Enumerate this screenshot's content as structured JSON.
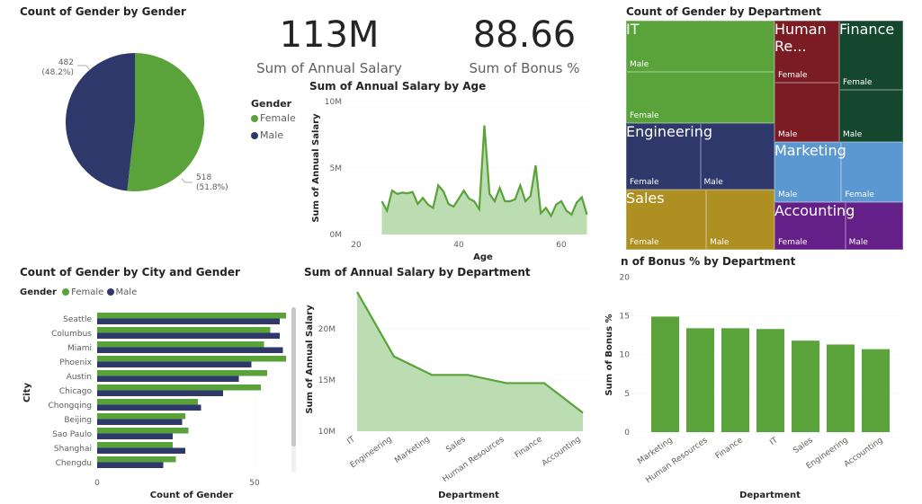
{
  "colors": {
    "female": "#5aa23a",
    "male": "#2e386b",
    "area": "#bcdcb1"
  },
  "kpis": [
    {
      "value": "113M",
      "label": "Sum of Annual Salary"
    },
    {
      "value": "88.66",
      "label": "Sum of Bonus %"
    }
  ],
  "legend": {
    "title": "Gender",
    "female": "Female",
    "male": "Male"
  },
  "pie": {
    "chart_title": "Count of Gender by Gender",
    "slices": [
      {
        "name": "Female",
        "value": 518,
        "label": "518",
        "pct": "(51.8%)"
      },
      {
        "name": "Male",
        "value": 482,
        "label": "482",
        "pct": "(48.2%)"
      }
    ]
  },
  "treemap": {
    "chart_title": "Count of Gender by Department",
    "departments": [
      {
        "name": "IT",
        "color": "#5aa23a",
        "groups": [
          "Male",
          "Female"
        ]
      },
      {
        "name": "Engineering",
        "color": "#2e386b",
        "groups": [
          "Female",
          "Male"
        ]
      },
      {
        "name": "Sales",
        "color": "#ae8f21",
        "groups": [
          "Female",
          "Male"
        ]
      },
      {
        "name": "Human Re...",
        "color": "#7b1c25",
        "groups": [
          "Female",
          "Male"
        ]
      },
      {
        "name": "Finance",
        "color": "#14472d",
        "groups": [
          "Female",
          "Male"
        ]
      },
      {
        "name": "Marketing",
        "color": "#5b97d1",
        "groups": [
          "Male",
          "Female"
        ]
      },
      {
        "name": "Accounting",
        "color": "#651f88",
        "groups": [
          "Female",
          "Male"
        ]
      }
    ]
  },
  "chart_data": [
    {
      "type": "area",
      "title": "Sum of Annual Salary by Age",
      "xlabel": "Age",
      "ylabel": "Sum of Annual Salary",
      "xlim": [
        20,
        65
      ],
      "ylim": [
        0,
        10000000
      ],
      "xticks": [
        "20",
        "40",
        "60"
      ],
      "yticks": [
        "0M",
        "5M",
        "10M"
      ],
      "x": [
        25,
        26,
        27,
        28,
        29,
        30,
        31,
        32,
        33,
        34,
        35,
        36,
        37,
        38,
        39,
        40,
        41,
        42,
        43,
        44,
        45,
        46,
        47,
        48,
        49,
        50,
        51,
        52,
        53,
        54,
        55,
        56,
        57,
        58,
        59,
        60,
        61,
        62,
        63,
        64,
        65
      ],
      "values": [
        2.5,
        1.8,
        3.3,
        3.05,
        3.15,
        3.1,
        3.2,
        2.3,
        2.75,
        2.25,
        2.0,
        3.7,
        3.25,
        2.3,
        2.1,
        2.7,
        3.3,
        2.7,
        2.5,
        1.9,
        8.2,
        3.05,
        2.5,
        3.5,
        2.5,
        2.5,
        2.65,
        3.7,
        2.5,
        2.9,
        5.2,
        1.6,
        2.0,
        1.4,
        2.25,
        2.5,
        1.8,
        1.5,
        2.4,
        2.8,
        1.5
      ],
      "unit": "M"
    },
    {
      "type": "bar",
      "orientation": "horizontal",
      "title": "Count of Gender by City and Gender",
      "xlabel": "Count of Gender",
      "ylabel": "City",
      "xticks": [
        "0",
        "50"
      ],
      "categories": [
        "Seattle",
        "Columbus",
        "Miami",
        "Phoenix",
        "Austin",
        "Chicago",
        "Chongqing",
        "Beijing",
        "Sao Paulo",
        "Shanghai",
        "Chengdu"
      ],
      "series": [
        {
          "name": "Female",
          "values": [
            60,
            55,
            53,
            60,
            54,
            52,
            32,
            28,
            29,
            24,
            25
          ]
        },
        {
          "name": "Male",
          "values": [
            58,
            58,
            59,
            49,
            45,
            40,
            33,
            27,
            24,
            28,
            21
          ]
        }
      ]
    },
    {
      "type": "area",
      "title": "Sum of Annual Salary by Department",
      "xlabel": "Department",
      "ylabel": "Sum of Annual Salary",
      "yticks": [
        "10M",
        "15M",
        "20M"
      ],
      "ylim": [
        10,
        25
      ],
      "categories": [
        "IT",
        "Engineering",
        "Marketing",
        "Sales",
        "Human Resources",
        "Finance",
        "Accounting"
      ],
      "values": [
        23.6,
        17.3,
        15.5,
        15.5,
        14.7,
        14.7,
        11.8
      ],
      "unit": "M"
    },
    {
      "type": "bar",
      "title": "Sum of Bonus % by Department",
      "title_visible": "n of Bonus % by Department",
      "xlabel": "Department",
      "ylabel": "Sum of Bonus %",
      "ylim": [
        0,
        20
      ],
      "yticks": [
        "0",
        "5",
        "10",
        "15",
        "20"
      ],
      "categories": [
        "Marketing",
        "Human Resources",
        "Finance",
        "IT",
        "Sales",
        "Engineering",
        "Accounting"
      ],
      "values": [
        14.9,
        13.4,
        13.4,
        13.3,
        11.8,
        11.3,
        10.7
      ]
    }
  ]
}
